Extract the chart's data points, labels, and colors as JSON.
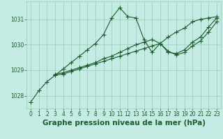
{
  "background_color": "#c5ece4",
  "grid_color": "#a0d0c0",
  "line_color": "#1a5c28",
  "marker_color": "#1a5c28",
  "xlabel": "Graphe pression niveau de la mer (hPa)",
  "xlabel_fontsize": 7.5,
  "tick_fontsize": 5.5,
  "xlim": [
    -0.5,
    23.5
  ],
  "ylim": [
    1027.5,
    1031.7
  ],
  "yticks": [
    1028,
    1029,
    1030,
    1031
  ],
  "xticks": [
    0,
    1,
    2,
    3,
    4,
    5,
    6,
    7,
    8,
    9,
    10,
    11,
    12,
    13,
    14,
    15,
    16,
    17,
    18,
    19,
    20,
    21,
    22,
    23
  ],
  "series": [
    {
      "x": [
        0,
        1,
        2,
        3,
        4,
        5,
        6,
        7,
        8,
        9,
        10,
        11,
        12,
        13,
        14,
        15,
        16,
        17,
        18,
        19,
        20,
        21,
        22,
        23
      ],
      "y": [
        1027.75,
        1028.2,
        1028.55,
        1028.8,
        1029.05,
        1029.3,
        1029.55,
        1029.8,
        1030.05,
        1030.4,
        1031.05,
        1031.45,
        1031.1,
        1031.05,
        1030.2,
        1029.7,
        1030.05,
        1030.3,
        1030.5,
        1030.65,
        1030.9,
        1031.0,
        1031.05,
        1031.1
      ]
    },
    {
      "x": [
        3,
        4,
        5,
        6,
        7,
        8,
        9,
        10,
        11,
        12,
        13,
        14,
        15,
        16,
        17,
        18,
        19,
        20,
        21,
        22,
        23
      ],
      "y": [
        1028.85,
        1028.9,
        1029.0,
        1029.1,
        1029.2,
        1029.3,
        1029.45,
        1029.55,
        1029.7,
        1029.85,
        1030.0,
        1030.1,
        1030.2,
        1030.05,
        1029.7,
        1029.65,
        1029.8,
        1030.1,
        1030.3,
        1030.7,
        1031.05
      ]
    },
    {
      "x": [
        3,
        4,
        5,
        6,
        7,
        8,
        9,
        10,
        11,
        12,
        13,
        14,
        15,
        16,
        17,
        18,
        19,
        20,
        21,
        22,
        23
      ],
      "y": [
        1028.8,
        1028.85,
        1028.95,
        1029.05,
        1029.15,
        1029.25,
        1029.35,
        1029.45,
        1029.55,
        1029.65,
        1029.75,
        1029.85,
        1029.95,
        1030.05,
        1029.75,
        1029.6,
        1029.7,
        1029.95,
        1030.15,
        1030.5,
        1030.9
      ]
    }
  ]
}
